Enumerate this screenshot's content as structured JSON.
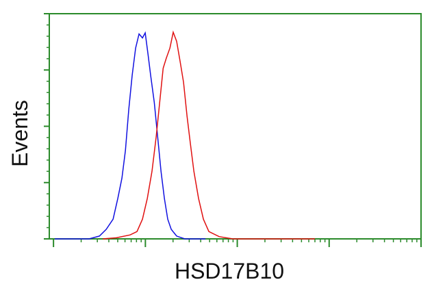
{
  "chart_data": {
    "type": "line",
    "ylabel": "Events",
    "xlabel": "HSD17B10",
    "xscale": "log",
    "xlim": [
      0.9,
      10000
    ],
    "xticks": [
      1,
      10,
      100,
      1000,
      10000
    ],
    "xminor": true,
    "ylim": [
      0,
      4
    ],
    "yticks": [
      0,
      1,
      2,
      3,
      4
    ],
    "yminor": true,
    "frame_color": "#2a8a2a",
    "series": [
      {
        "color": "#1010e0",
        "x": [
          1.03,
          2.44,
          3.16,
          3.75,
          4.45,
          5.01,
          5.56,
          6.06,
          6.6,
          7.19,
          7.83,
          8.53,
          9.29,
          9.96,
          10.7,
          11.4,
          12.5,
          13.6,
          14.8,
          16.1,
          17.5,
          19.1,
          21.9,
          26.9,
          45.1
        ],
        "values": [
          0,
          0,
          0.05,
          0.17,
          0.35,
          0.72,
          1.08,
          1.57,
          2.3,
          2.91,
          3.39,
          3.64,
          3.57,
          3.66,
          3.27,
          2.91,
          2.42,
          1.81,
          1.2,
          0.72,
          0.35,
          0.17,
          0.05,
          0,
          0
        ]
      },
      {
        "color": "#e01010",
        "x": [
          3.44,
          4.84,
          6.83,
          8.11,
          9.29,
          10.5,
          11.8,
          13.1,
          14.3,
          15.6,
          16.9,
          18.5,
          20.1,
          21.9,
          23.9,
          26.0,
          28.4,
          30.9,
          33.7,
          37.9,
          42.8,
          49.1,
          63.5,
          89.5,
          700
        ],
        "values": [
          0,
          0.02,
          0.07,
          0.13,
          0.35,
          0.72,
          1.2,
          1.81,
          2.42,
          3.03,
          3.21,
          3.39,
          3.67,
          3.51,
          3.15,
          2.78,
          2.18,
          1.69,
          1.2,
          0.72,
          0.35,
          0.13,
          0.04,
          0,
          0
        ]
      }
    ]
  }
}
